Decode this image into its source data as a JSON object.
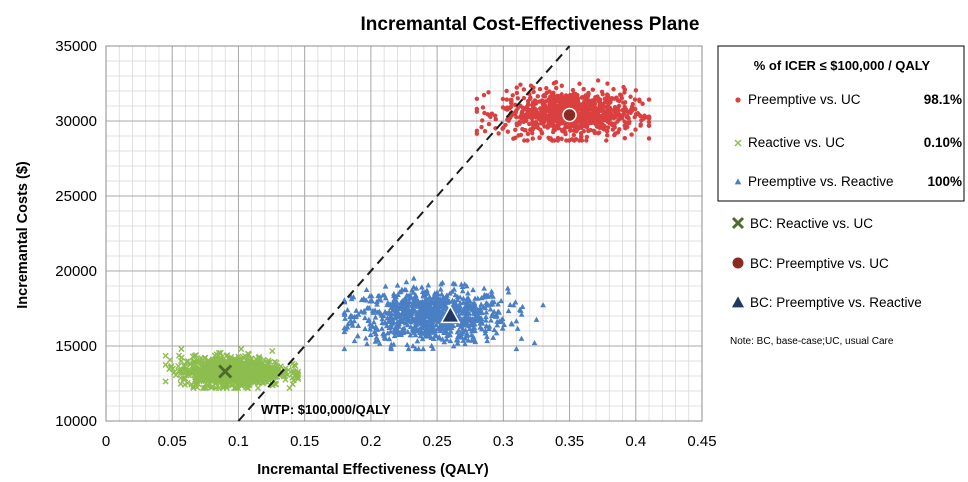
{
  "chart_data": {
    "type": "scatter",
    "title": "Incremantal Cost-Effectiveness Plane",
    "xlabel": "Incremantal Effectiveness (QALY)",
    "ylabel": "Incremantal Costs ($)",
    "xlim": [
      0,
      0.45
    ],
    "ylim": [
      10000,
      35000
    ],
    "x_ticks": [
      "0",
      "0.05",
      "0.1",
      "0.15",
      "0.2",
      "0.25",
      "0.3",
      "0.35",
      "0.4",
      "0.45"
    ],
    "x_tick_values": [
      0,
      0.05,
      0.1,
      0.15,
      0.2,
      0.25,
      0.3,
      0.35,
      0.4,
      0.45
    ],
    "y_ticks": [
      "10000",
      "15000",
      "20000",
      "25000",
      "30000",
      "35000"
    ],
    "y_tick_values": [
      10000,
      15000,
      20000,
      25000,
      30000,
      35000
    ],
    "grid": true,
    "legend_placement": "right",
    "legend_header": "% of ICER ≤ $100,000 / QALY",
    "series": [
      {
        "name": "Preemptive vs. UC",
        "percent": "98.1%",
        "color": "#d9403f",
        "marker": "circle",
        "cloud": {
          "x_center": 0.35,
          "y_center": 30500,
          "x_range": [
            0.28,
            0.41
          ],
          "y_range": [
            28700,
            32700
          ]
        }
      },
      {
        "name": "Reactive vs. UC",
        "percent": "0.10%",
        "color": "#8cbd4e",
        "marker": "x",
        "cloud": {
          "x_center": 0.095,
          "y_center": 13300,
          "x_range": [
            0.045,
            0.145
          ],
          "y_range": [
            12200,
            14800
          ]
        }
      },
      {
        "name": "Preemptive vs. Reactive",
        "percent": "100%",
        "color": "#4a7fc4",
        "marker": "triangle",
        "cloud": {
          "x_center": 0.245,
          "y_center": 17000,
          "x_range": [
            0.18,
            0.33
          ],
          "y_range": [
            14800,
            19500
          ]
        }
      }
    ],
    "base_cases": [
      {
        "name": "BC: Reactive vs. UC",
        "x": 0.09,
        "y": 13300,
        "color": "#4e6b2c",
        "marker": "x"
      },
      {
        "name": "BC: Preemptive vs. UC",
        "x": 0.35,
        "y": 30400,
        "color": "#8b2a22",
        "marker": "circle"
      },
      {
        "name": "BC: Preemptive vs. Reactive",
        "x": 0.26,
        "y": 17000,
        "color": "#1f3864",
        "marker": "triangle"
      }
    ],
    "wtp_line": {
      "label": "WTP: $100,000/QALY",
      "slope": 100000,
      "style": "dashed",
      "color": "#1a1a1a"
    },
    "note": "Note: BC, base-case;UC, usual Care"
  }
}
